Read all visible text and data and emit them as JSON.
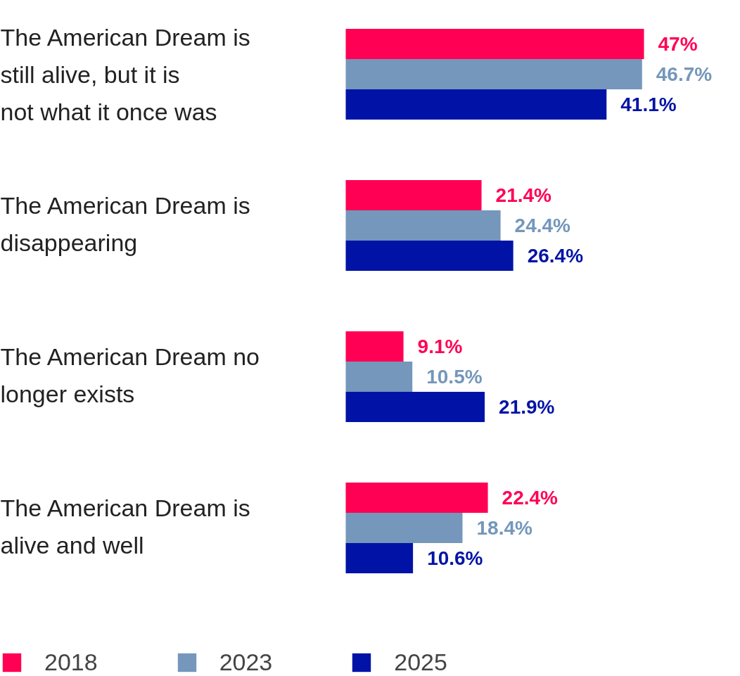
{
  "chart_data": {
    "type": "bar",
    "orientation": "horizontal",
    "categories": [
      "The American Dream is still alive, but it is not what it once was",
      "The American Dream is disappearing",
      "The American Dream no longer exists",
      "The American Dream is alive and well"
    ],
    "series": [
      {
        "name": "2018",
        "color": "#ff0055",
        "values": [
          47,
          21.4,
          9.1,
          22.4
        ],
        "value_labels": [
          "47%",
          "21.4%",
          "9.1%",
          "22.4%"
        ]
      },
      {
        "name": "2023",
        "color": "#7497bb",
        "values": [
          46.7,
          24.4,
          10.5,
          18.4
        ],
        "value_labels": [
          "46.7%",
          "24.4%",
          "10.5%",
          "18.4%"
        ]
      },
      {
        "name": "2025",
        "color": "#0013a6",
        "values": [
          41.1,
          26.4,
          21.9,
          10.6
        ],
        "value_labels": [
          "41.1%",
          "26.4%",
          "21.9%",
          "10.6%"
        ]
      }
    ],
    "legend": "bottom"
  }
}
